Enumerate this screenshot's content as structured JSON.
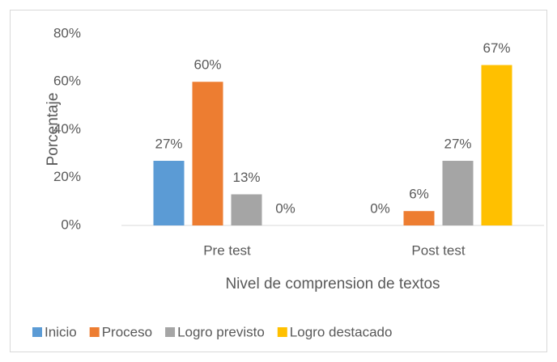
{
  "chart_data": {
    "type": "bar",
    "categories": [
      "Pre test",
      "Post test"
    ],
    "series": [
      {
        "name": "Inicio",
        "color": "#5b9bd5",
        "values": [
          27,
          0
        ],
        "value_labels": [
          "27%",
          "0%"
        ]
      },
      {
        "name": "Proceso",
        "color": "#ed7d31",
        "values": [
          60,
          6
        ],
        "value_labels": [
          "60%",
          "6%"
        ]
      },
      {
        "name": "Logro previsto",
        "color": "#a5a5a5",
        "values": [
          13,
          27
        ],
        "value_labels": [
          "13%",
          "27%"
        ]
      },
      {
        "name": "Logro destacado",
        "color": "#ffc000",
        "values": [
          0,
          67
        ],
        "value_labels": [
          "0%",
          "67%"
        ]
      }
    ],
    "ylabel": "Porcentaje",
    "xlabel": "Nivel de comprension de textos",
    "ylim": [
      0,
      80
    ],
    "yticks": [
      {
        "value": 0,
        "label": "0%"
      },
      {
        "value": 20,
        "label": "20%"
      },
      {
        "value": 40,
        "label": "40%"
      },
      {
        "value": 60,
        "label": "60%"
      },
      {
        "value": 80,
        "label": "80%"
      }
    ],
    "grid": false,
    "legend": "bottom"
  }
}
